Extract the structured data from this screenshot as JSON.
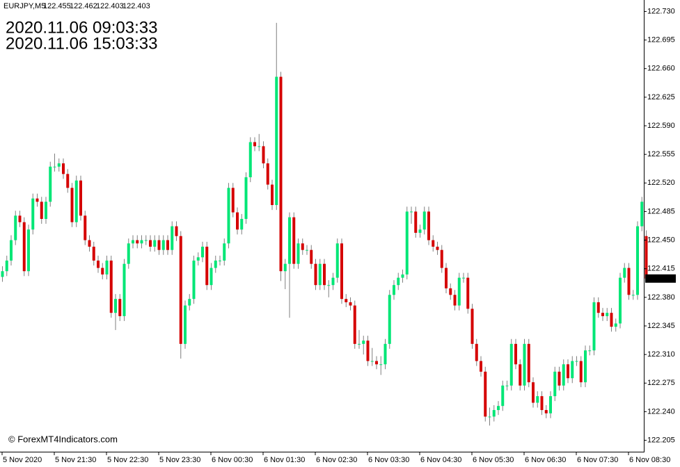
{
  "chart_data": {
    "type": "candlestick",
    "symbol": "EURJPY,M5",
    "header_ohlc": [
      122.455,
      122.462,
      122.403,
      122.403
    ],
    "annotations": [
      {
        "text": "2020.11.06 09:03:33",
        "color": "#ff0000"
      },
      {
        "text": "2020.11.06 15:03:33",
        "color": "#00e000"
      }
    ],
    "watermark": "© ForexMT4Indicators.com",
    "current_price": 122.403,
    "up_color": "#00e676",
    "down_color": "#d50000",
    "wick_color": "#7f7f7f",
    "ylim": [
      122.191,
      122.744
    ],
    "yticks": [
      {
        "value": 122.73,
        "label": "122.730"
      },
      122.695,
      {
        "value": 122.66,
        "label": "122.660"
      },
      122.625,
      {
        "value": 122.59,
        "label": "122.590"
      },
      122.555,
      {
        "value": 122.52,
        "label": "122.520"
      },
      122.485,
      {
        "value": 122.45,
        "label": "122.450"
      },
      122.415,
      {
        "value": 122.38,
        "label": "122.380"
      },
      122.345,
      {
        "value": 122.31,
        "label": "122.310"
      },
      122.275,
      {
        "value": 122.24,
        "label": "122.240"
      },
      122.205
    ],
    "categories": [
      "5 Nov 2020",
      null,
      null,
      null,
      null,
      null,
      null,
      null,
      null,
      null,
      null,
      null,
      "5 Nov 21:30",
      null,
      null,
      null,
      null,
      null,
      null,
      null,
      null,
      null,
      null,
      null,
      "5 Nov 22:30",
      null,
      null,
      null,
      null,
      null,
      null,
      null,
      null,
      null,
      null,
      null,
      "5 Nov 23:30",
      null,
      null,
      null,
      null,
      null,
      null,
      null,
      null,
      null,
      null,
      null,
      "6 Nov 00:30",
      null,
      null,
      null,
      null,
      null,
      null,
      null,
      null,
      null,
      null,
      null,
      "6 Nov 01:30",
      null,
      null,
      null,
      null,
      null,
      null,
      null,
      null,
      null,
      null,
      null,
      "6 Nov 02:30",
      null,
      null,
      null,
      null,
      null,
      null,
      null,
      null,
      null,
      null,
      null,
      "6 Nov 03:30",
      null,
      null,
      null,
      null,
      null,
      null,
      null,
      null,
      null,
      null,
      null,
      "6 Nov 04:30",
      null,
      null,
      null,
      null,
      null,
      null,
      null,
      null,
      null,
      null,
      null,
      "6 Nov 05:30",
      null,
      null,
      null,
      null,
      null,
      null,
      null,
      null,
      null,
      null,
      null,
      "6 Nov 06:30",
      null,
      null,
      null,
      null,
      null,
      null,
      null,
      null,
      null,
      null,
      null,
      "6 Nov 07:30",
      null,
      null,
      null,
      null,
      null,
      null,
      null,
      null,
      null,
      null,
      null,
      "6 Nov 08:30",
      null,
      null,
      null,
      null
    ],
    "series": [
      {
        "values": [
          [
            122.405,
            122.418,
            122.399,
            122.412
          ],
          [
            122.412,
            122.431,
            122.406,
            122.425
          ],
          [
            122.425,
            122.456,
            122.419,
            122.45
          ],
          [
            122.45,
            122.486,
            122.444,
            122.48
          ],
          [
            122.48,
            122.486,
            122.466,
            122.472
          ],
          [
            122.472,
            122.478,
            122.406,
            122.412
          ],
          [
            122.412,
            122.469,
            122.406,
            122.463
          ],
          [
            122.463,
            122.507,
            122.457,
            122.501
          ],
          [
            122.501,
            122.507,
            122.491,
            122.497
          ],
          [
            122.497,
            122.503,
            122.47,
            122.476
          ],
          [
            122.476,
            122.503,
            122.47,
            122.497
          ],
          [
            122.497,
            122.546,
            122.491,
            122.54
          ],
          [
            122.54,
            122.556,
            122.534,
            122.54
          ],
          [
            122.54,
            122.55,
            122.534,
            122.544
          ],
          [
            122.544,
            122.55,
            122.525,
            122.531
          ],
          [
            122.531,
            122.537,
            122.508,
            122.514
          ],
          [
            122.514,
            122.52,
            122.466,
            122.472
          ],
          [
            122.472,
            122.529,
            122.466,
            122.523
          ],
          [
            122.523,
            122.529,
            122.474,
            122.48
          ],
          [
            122.48,
            122.486,
            122.444,
            122.45
          ],
          [
            122.45,
            122.456,
            122.436,
            122.442
          ],
          [
            122.442,
            122.448,
            122.419,
            122.425
          ],
          [
            122.425,
            122.431,
            122.41,
            122.416
          ],
          [
            122.416,
            122.422,
            122.402,
            122.408
          ],
          [
            122.408,
            122.431,
            122.402,
            122.425
          ],
          [
            122.425,
            122.431,
            122.355,
            122.361
          ],
          [
            122.361,
            122.384,
            122.34,
            122.378
          ],
          [
            122.378,
            122.384,
            122.351,
            122.357
          ],
          [
            122.357,
            122.427,
            122.351,
            122.421
          ],
          [
            122.421,
            122.452,
            122.415,
            122.446
          ],
          [
            122.446,
            122.456,
            122.44,
            122.45
          ],
          [
            122.45,
            122.456,
            122.44,
            122.446
          ],
          [
            122.446,
            122.456,
            122.44,
            122.45
          ],
          [
            122.45,
            122.456,
            122.444,
            122.45
          ],
          [
            122.45,
            122.456,
            122.436,
            122.442
          ],
          [
            122.442,
            122.456,
            122.436,
            122.45
          ],
          [
            122.45,
            122.456,
            122.432,
            122.438
          ],
          [
            122.438,
            122.456,
            122.432,
            122.45
          ],
          [
            122.45,
            122.456,
            122.432,
            122.438
          ],
          [
            122.438,
            122.473,
            122.432,
            122.467
          ],
          [
            122.467,
            122.473,
            122.449,
            122.455
          ],
          [
            122.455,
            122.461,
            122.305,
            122.323
          ],
          [
            122.323,
            122.376,
            122.317,
            122.37
          ],
          [
            122.37,
            122.384,
            122.364,
            122.378
          ],
          [
            122.378,
            122.431,
            122.372,
            122.425
          ],
          [
            122.425,
            122.435,
            122.419,
            122.429
          ],
          [
            122.429,
            122.448,
            122.423,
            122.442
          ],
          [
            122.442,
            122.448,
            122.389,
            122.395
          ],
          [
            122.395,
            122.422,
            122.389,
            122.416
          ],
          [
            122.416,
            122.431,
            122.41,
            122.425
          ],
          [
            122.425,
            122.431,
            122.419,
            122.425
          ],
          [
            122.425,
            122.452,
            122.419,
            122.446
          ],
          [
            122.446,
            122.52,
            122.44,
            122.514
          ],
          [
            122.514,
            122.52,
            122.478,
            122.484
          ],
          [
            122.484,
            122.49,
            122.457,
            122.463
          ],
          [
            122.463,
            122.482,
            122.457,
            122.476
          ],
          [
            122.476,
            122.533,
            122.47,
            122.527
          ],
          [
            122.527,
            122.576,
            122.521,
            122.57
          ],
          [
            122.57,
            122.576,
            122.559,
            122.565
          ],
          [
            122.565,
            122.58,
            122.559,
            122.565
          ],
          [
            122.565,
            122.571,
            122.538,
            122.544
          ],
          [
            122.544,
            122.55,
            122.512,
            122.518
          ],
          [
            122.518,
            122.524,
            122.487,
            122.493
          ],
          [
            122.493,
            122.716,
            122.487,
            122.65
          ],
          [
            122.65,
            122.656,
            122.4,
            122.412
          ],
          [
            122.412,
            122.427,
            122.39,
            122.421
          ],
          [
            122.421,
            122.484,
            122.355,
            122.478
          ],
          [
            122.478,
            122.484,
            122.415,
            122.421
          ],
          [
            122.421,
            122.452,
            122.415,
            122.446
          ],
          [
            122.446,
            122.452,
            122.432,
            122.438
          ],
          [
            122.438,
            122.444,
            122.432,
            122.438
          ],
          [
            122.438,
            122.444,
            122.415,
            122.421
          ],
          [
            122.421,
            122.427,
            122.389,
            122.395
          ],
          [
            122.395,
            122.427,
            122.389,
            122.421
          ],
          [
            122.421,
            122.427,
            122.389,
            122.395
          ],
          [
            122.395,
            122.401,
            122.38,
            122.395
          ],
          [
            122.395,
            122.41,
            122.389,
            122.404
          ],
          [
            122.404,
            122.452,
            122.398,
            122.446
          ],
          [
            122.446,
            122.452,
            122.372,
            122.378
          ],
          [
            122.378,
            122.384,
            122.368,
            122.374
          ],
          [
            122.374,
            122.38,
            122.364,
            122.37
          ],
          [
            122.37,
            122.376,
            122.317,
            122.323
          ],
          [
            122.323,
            122.34,
            122.317,
            122.323
          ],
          [
            122.323,
            122.333,
            122.31,
            122.327
          ],
          [
            122.327,
            122.333,
            122.296,
            122.302
          ],
          [
            122.302,
            122.318,
            122.296,
            122.302
          ],
          [
            122.302,
            122.308,
            122.292,
            122.298
          ],
          [
            122.298,
            122.308,
            122.285,
            122.298
          ],
          [
            122.298,
            122.329,
            122.292,
            122.323
          ],
          [
            122.323,
            122.389,
            122.317,
            122.383
          ],
          [
            122.383,
            122.401,
            122.377,
            122.395
          ],
          [
            122.395,
            122.41,
            122.389,
            122.404
          ],
          [
            122.404,
            122.414,
            122.398,
            122.408
          ],
          [
            122.408,
            122.491,
            122.402,
            122.485
          ],
          [
            122.485,
            122.491,
            122.47,
            122.485
          ],
          [
            122.485,
            122.491,
            122.453,
            122.459
          ],
          [
            122.459,
            122.469,
            122.453,
            122.463
          ],
          [
            122.463,
            122.491,
            122.457,
            122.485
          ],
          [
            122.485,
            122.491,
            122.444,
            122.45
          ],
          [
            122.45,
            122.456,
            122.436,
            122.442
          ],
          [
            122.442,
            122.448,
            122.432,
            122.438
          ],
          [
            122.438,
            122.444,
            122.41,
            122.416
          ],
          [
            122.416,
            122.422,
            122.385,
            122.391
          ],
          [
            122.391,
            122.397,
            122.377,
            122.383
          ],
          [
            122.383,
            122.389,
            122.364,
            122.37
          ],
          [
            122.37,
            122.41,
            122.364,
            122.404
          ],
          [
            122.404,
            122.41,
            122.398,
            122.404
          ],
          [
            122.404,
            122.41,
            122.36,
            122.366
          ],
          [
            122.366,
            122.372,
            122.317,
            122.323
          ],
          [
            122.323,
            122.329,
            122.296,
            122.302
          ],
          [
            122.302,
            122.308,
            122.283,
            122.289
          ],
          [
            122.289,
            122.295,
            122.228,
            122.234
          ],
          [
            122.234,
            122.245,
            122.223,
            122.234
          ],
          [
            122.234,
            122.248,
            122.228,
            122.242
          ],
          [
            122.242,
            122.253,
            122.236,
            122.247
          ],
          [
            122.247,
            122.278,
            122.241,
            122.272
          ],
          [
            122.272,
            122.278,
            122.266,
            122.272
          ],
          [
            122.272,
            122.329,
            122.266,
            122.323
          ],
          [
            122.323,
            122.329,
            122.292,
            122.298
          ],
          [
            122.298,
            122.304,
            122.266,
            122.272
          ],
          [
            122.272,
            122.329,
            122.266,
            122.323
          ],
          [
            122.323,
            122.329,
            122.27,
            122.276
          ],
          [
            122.276,
            122.282,
            122.245,
            122.251
          ],
          [
            122.251,
            122.265,
            122.245,
            122.259
          ],
          [
            122.259,
            122.265,
            122.236,
            122.242
          ],
          [
            122.242,
            122.248,
            122.232,
            122.238
          ],
          [
            122.238,
            122.265,
            122.232,
            122.259
          ],
          [
            122.259,
            122.295,
            122.253,
            122.289
          ],
          [
            122.289,
            122.295,
            122.266,
            122.272
          ],
          [
            122.272,
            122.304,
            122.266,
            122.298
          ],
          [
            122.298,
            122.304,
            122.275,
            122.281
          ],
          [
            122.281,
            122.308,
            122.275,
            122.302
          ],
          [
            122.302,
            122.308,
            122.296,
            122.302
          ],
          [
            122.302,
            122.308,
            122.27,
            122.276
          ],
          [
            122.276,
            122.321,
            122.27,
            122.315
          ],
          [
            122.315,
            122.321,
            122.309,
            122.315
          ],
          [
            122.315,
            122.38,
            122.309,
            122.374
          ],
          [
            122.374,
            122.38,
            122.355,
            122.361
          ],
          [
            122.361,
            122.367,
            122.351,
            122.357
          ],
          [
            122.357,
            122.367,
            122.351,
            122.361
          ],
          [
            122.361,
            122.367,
            122.338,
            122.344
          ],
          [
            122.344,
            122.354,
            122.338,
            122.348
          ],
          [
            122.348,
            122.41,
            122.342,
            122.404
          ],
          [
            122.404,
            122.422,
            122.398,
            122.416
          ],
          [
            122.416,
            122.422,
            122.377,
            122.383
          ],
          [
            122.383,
            122.389,
            122.377,
            122.383
          ],
          [
            122.383,
            122.473,
            122.377,
            122.467
          ],
          [
            122.467,
            122.503,
            122.461,
            122.497
          ],
          [
            122.455,
            122.462,
            122.403,
            122.403
          ]
        ]
      }
    ]
  }
}
